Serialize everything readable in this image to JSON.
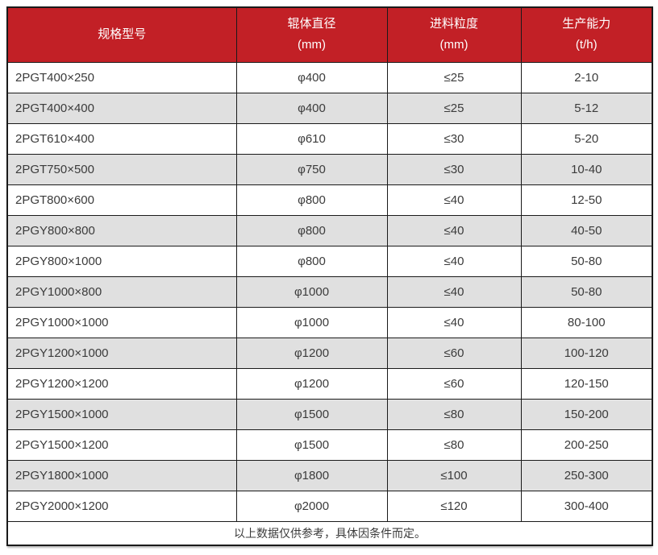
{
  "colors": {
    "header_bg": "#C22026",
    "header_text": "#FFFFFF",
    "row_stripe": "#E0E0E0",
    "row_bg": "#FFFFFF",
    "border": "#1A1A1A",
    "text": "#3B3B3B"
  },
  "table": {
    "headers": {
      "model": {
        "line1": "规格型号",
        "line2": ""
      },
      "diameter": {
        "line1": "辊体直径",
        "line2": "(mm)"
      },
      "feed_size": {
        "line1": "进料粒度",
        "line2": "(mm)"
      },
      "capacity": {
        "line1": "生产能力",
        "line2": "(t/h)"
      }
    },
    "rows": [
      [
        "2PGT400×250",
        "φ400",
        "≤25",
        "2-10"
      ],
      [
        "2PGT400×400",
        "φ400",
        "≤25",
        "5-12"
      ],
      [
        "2PGT610×400",
        "φ610",
        "≤30",
        "5-20"
      ],
      [
        "2PGT750×500",
        "φ750",
        "≤30",
        "10-40"
      ],
      [
        "2PGT800×600",
        "φ800",
        "≤40",
        "12-50"
      ],
      [
        "2PGY800×800",
        "φ800",
        "≤40",
        "40-50"
      ],
      [
        "2PGY800×1000",
        "φ800",
        "≤40",
        "50-80"
      ],
      [
        "2PGY1000×800",
        "φ1000",
        "≤40",
        "50-80"
      ],
      [
        "2PGY1000×1000",
        "φ1000",
        "≤40",
        "80-100"
      ],
      [
        "2PGY1200×1000",
        "φ1200",
        "≤60",
        "100-120"
      ],
      [
        "2PGY1200×1200",
        "φ1200",
        "≤60",
        "120-150"
      ],
      [
        "2PGY1500×1000",
        "φ1500",
        "≤80",
        "150-200"
      ],
      [
        "2PGY1500×1200",
        "φ1500",
        "≤80",
        "200-250"
      ],
      [
        "2PGY1800×1000",
        "φ1800",
        "≤100",
        "250-300"
      ],
      [
        "2PGY2000×1200",
        "φ2000",
        "≤120",
        "300-400"
      ]
    ],
    "footer_note": "以上数据仅供参考，具体因条件而定。"
  },
  "chart_data": {
    "type": "table",
    "title": "",
    "columns": [
      "规格型号",
      "辊体直径 (mm)",
      "进料粒度 (mm)",
      "生产能力 (t/h)"
    ],
    "rows": [
      [
        "2PGT400×250",
        "φ400",
        "≤25",
        "2-10"
      ],
      [
        "2PGT400×400",
        "φ400",
        "≤25",
        "5-12"
      ],
      [
        "2PGT610×400",
        "φ610",
        "≤30",
        "5-20"
      ],
      [
        "2PGT750×500",
        "φ750",
        "≤30",
        "10-40"
      ],
      [
        "2PGT800×600",
        "φ800",
        "≤40",
        "12-50"
      ],
      [
        "2PGY800×800",
        "φ800",
        "≤40",
        "40-50"
      ],
      [
        "2PGY800×1000",
        "φ800",
        "≤40",
        "50-80"
      ],
      [
        "2PGY1000×800",
        "φ1000",
        "≤40",
        "50-80"
      ],
      [
        "2PGY1000×1000",
        "φ1000",
        "≤40",
        "80-100"
      ],
      [
        "2PGY1200×1000",
        "φ1200",
        "≤60",
        "100-120"
      ],
      [
        "2PGY1200×1200",
        "φ1200",
        "≤60",
        "120-150"
      ],
      [
        "2PGY1500×1000",
        "φ1500",
        "≤80",
        "150-200"
      ],
      [
        "2PGY1500×1200",
        "φ1500",
        "≤80",
        "200-250"
      ],
      [
        "2PGY1800×1000",
        "φ1800",
        "≤100",
        "250-300"
      ],
      [
        "2PGY2000×1200",
        "φ2000",
        "≤120",
        "300-400"
      ]
    ],
    "note": "以上数据仅供参考，具体因条件而定。"
  }
}
